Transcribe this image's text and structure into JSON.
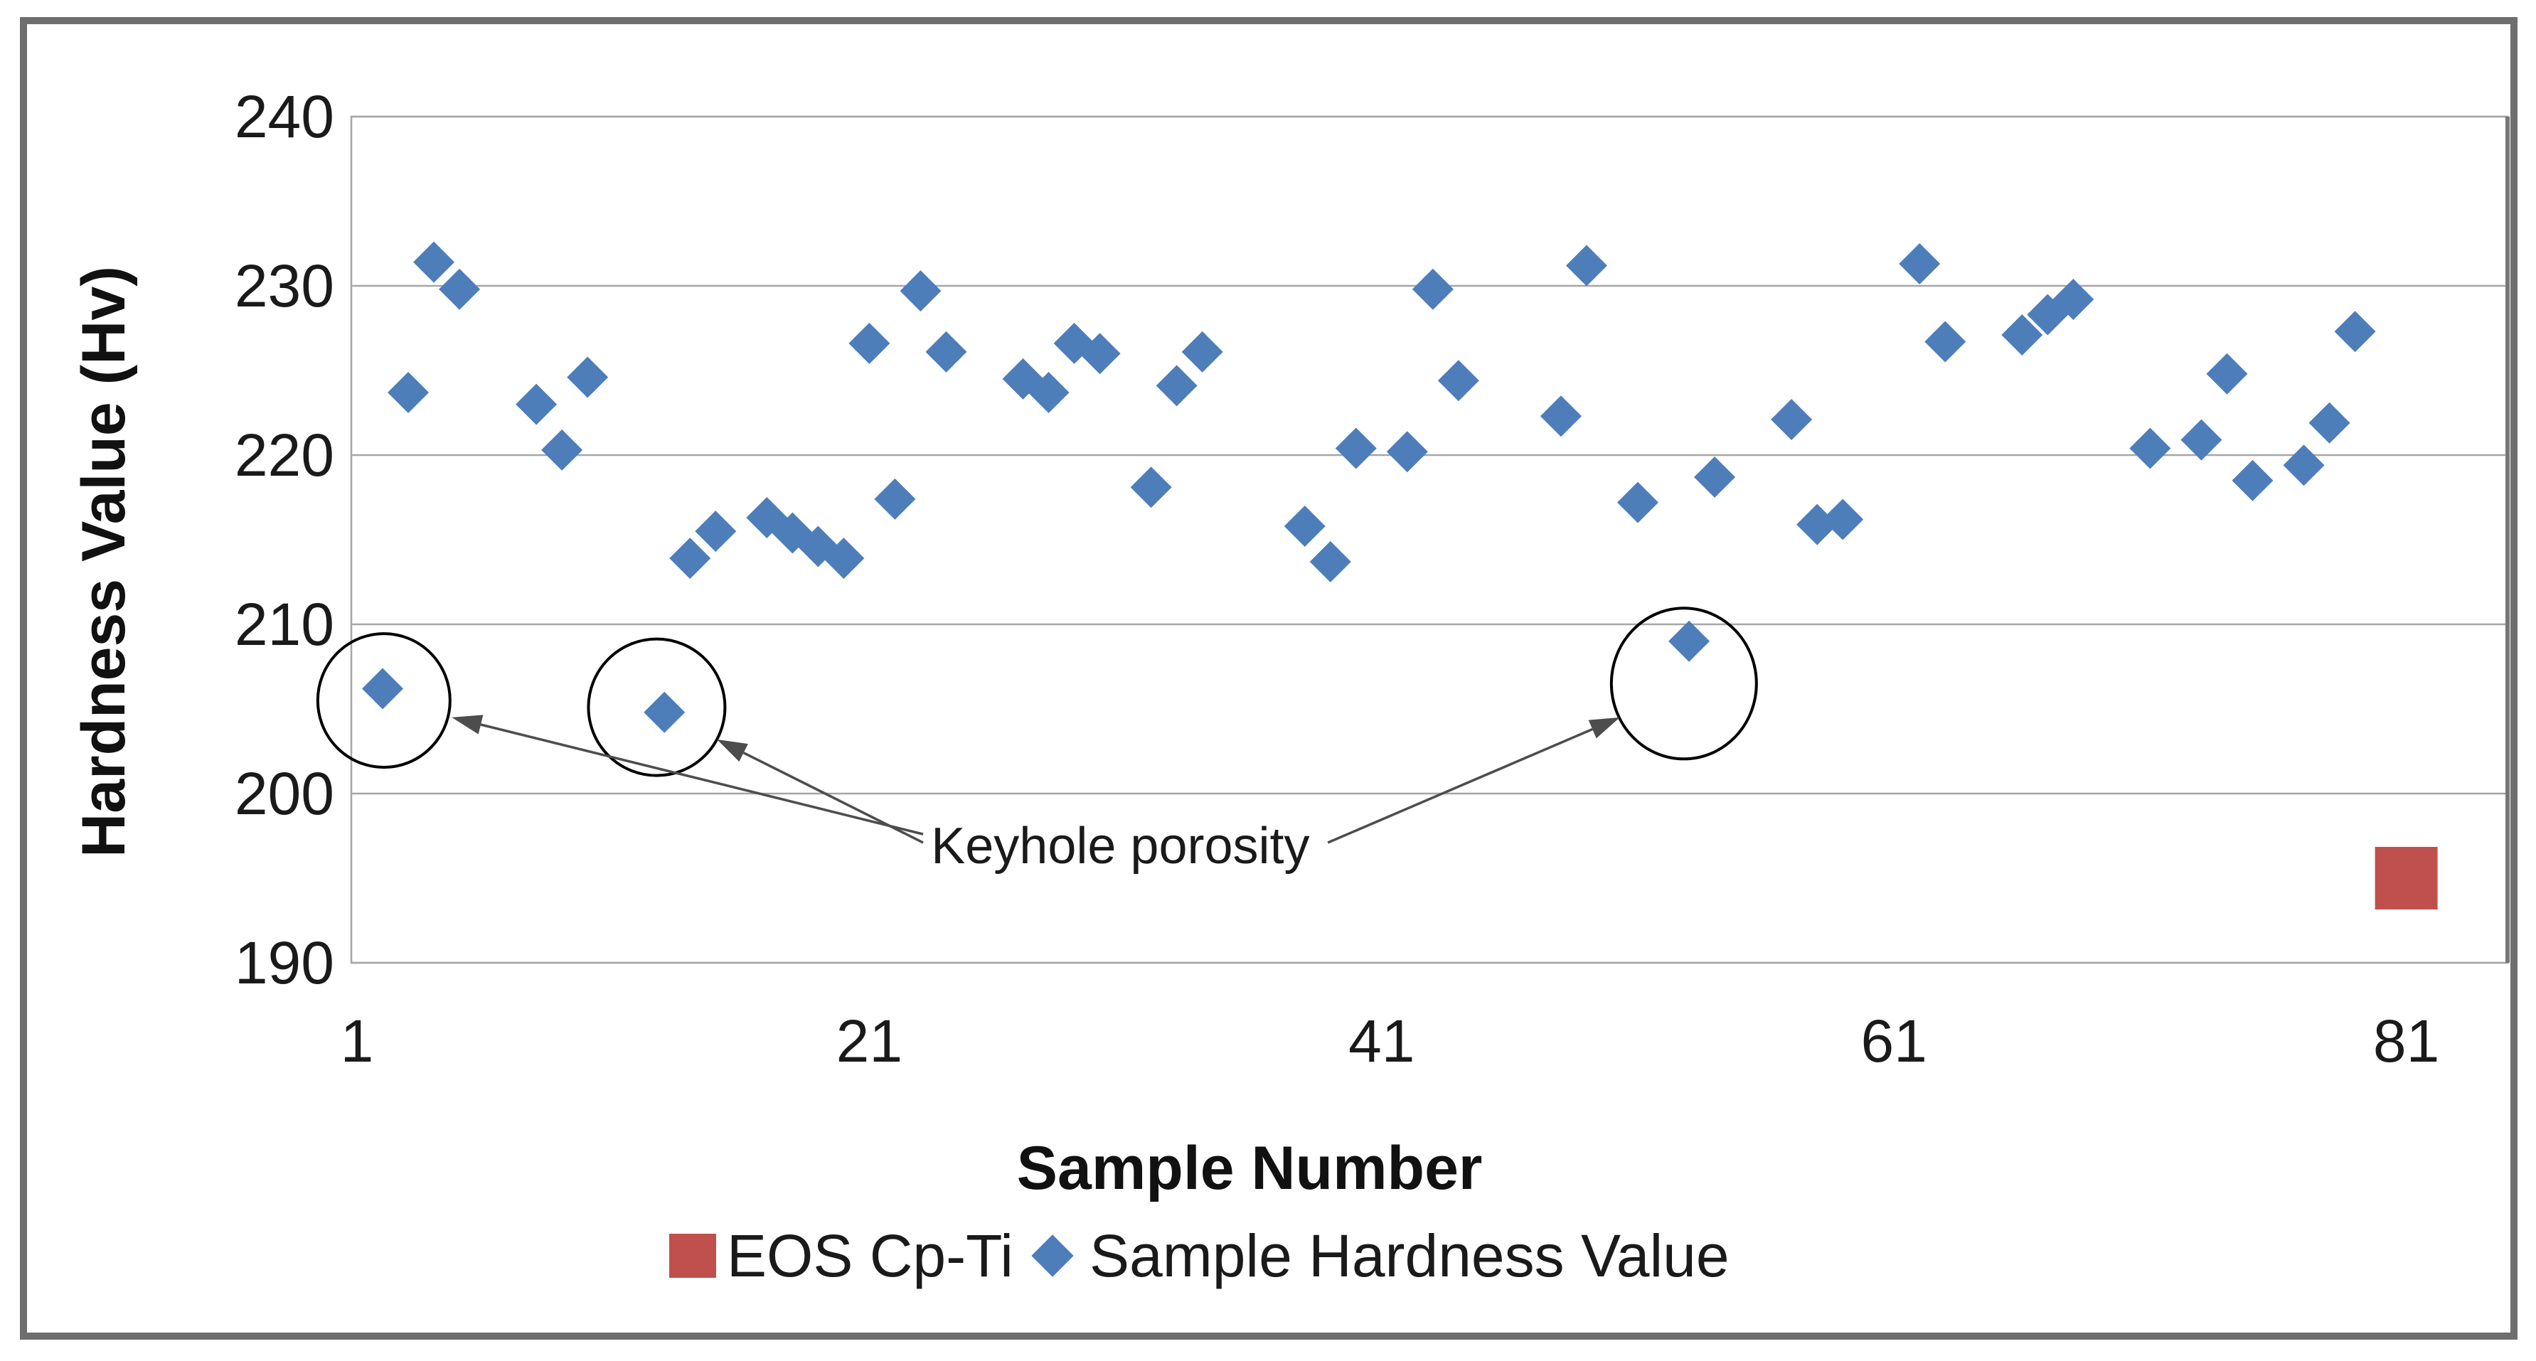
{
  "colors": {
    "series_blue": "#4D7EBA",
    "series_red": "#C0504D",
    "gridline": "#A6A6A6",
    "plot_border": "#A6A6A6",
    "plot_border_right": "#777777",
    "frame": "#6E6E6E",
    "text": "#1a1a1a",
    "annotation_line": "#4D4D4D",
    "circle_outline": "#000000"
  },
  "chart_data": {
    "type": "scatter",
    "title": "",
    "xlabel": "Sample Number",
    "ylabel": "Hardness Value (Hv)",
    "x_ticks": [
      1,
      21,
      41,
      61,
      81
    ],
    "y_ticks": [
      240,
      230,
      220,
      210,
      200,
      190
    ],
    "xlim": [
      0.8,
      85
    ],
    "ylim": [
      190,
      240
    ],
    "grid": "horizontal",
    "legend_position": "bottom",
    "series": [
      {
        "name": "EOS Cp-Ti",
        "marker": "square",
        "color": "#C0504D",
        "points": [
          [
            81,
            195
          ]
        ]
      },
      {
        "name": "Sample Hardness Value",
        "marker": "diamond",
        "color": "#4D7EBA",
        "points": [
          [
            2,
            206.2
          ],
          [
            3,
            223.7
          ],
          [
            4,
            231.4
          ],
          [
            5,
            229.8
          ],
          [
            8,
            223.0
          ],
          [
            9,
            220.3
          ],
          [
            10,
            224.6
          ],
          [
            13,
            204.8
          ],
          [
            14,
            213.9
          ],
          [
            15,
            215.5
          ],
          [
            17,
            216.3
          ],
          [
            18,
            215.4
          ],
          [
            19,
            214.6
          ],
          [
            20,
            213.9
          ],
          [
            21,
            226.6
          ],
          [
            22,
            217.4
          ],
          [
            23,
            229.7
          ],
          [
            24,
            226.1
          ],
          [
            27,
            224.5
          ],
          [
            28,
            223.7
          ],
          [
            29,
            226.6
          ],
          [
            30,
            226.0
          ],
          [
            32,
            218.1
          ],
          [
            33,
            224.1
          ],
          [
            34,
            226.1
          ],
          [
            38,
            215.8
          ],
          [
            39,
            213.7
          ],
          [
            40,
            220.4
          ],
          [
            42,
            220.2
          ],
          [
            43,
            229.8
          ],
          [
            44,
            224.4
          ],
          [
            48,
            222.3
          ],
          [
            49,
            231.2
          ],
          [
            51,
            217.2
          ],
          [
            53,
            209.0
          ],
          [
            54,
            218.7
          ],
          [
            57,
            222.1
          ],
          [
            58,
            215.9
          ],
          [
            59,
            216.2
          ],
          [
            62,
            231.3
          ],
          [
            63,
            226.7
          ],
          [
            66,
            227.1
          ],
          [
            67,
            228.3
          ],
          [
            68,
            229.2
          ],
          [
            71,
            220.4
          ],
          [
            73,
            220.9
          ],
          [
            74,
            224.8
          ],
          [
            75,
            218.5
          ],
          [
            77,
            219.4
          ],
          [
            78,
            221.9
          ],
          [
            79,
            227.3
          ]
        ]
      }
    ],
    "annotations": {
      "label": {
        "text": "Keyhole porosity",
        "x": 30.8,
        "v": 196.9
      },
      "circled_points": [
        {
          "x": 2.05,
          "v": 205.5,
          "rx": 93,
          "ry": 94
        },
        {
          "x": 12.7,
          "v": 205.1,
          "rx": 96,
          "ry": 96
        },
        {
          "x": 52.8,
          "v": 206.5,
          "rx": 102,
          "ry": 106
        }
      ],
      "arrows": [
        {
          "from": [
            23.1,
            197.6
          ],
          "to": [
            4.7,
            204.5
          ]
        },
        {
          "from": [
            23.1,
            197.1
          ],
          "to": [
            15.05,
            203.2
          ]
        },
        {
          "from": [
            38.9,
            197.1
          ],
          "to": [
            50.3,
            204.5
          ]
        }
      ]
    }
  }
}
